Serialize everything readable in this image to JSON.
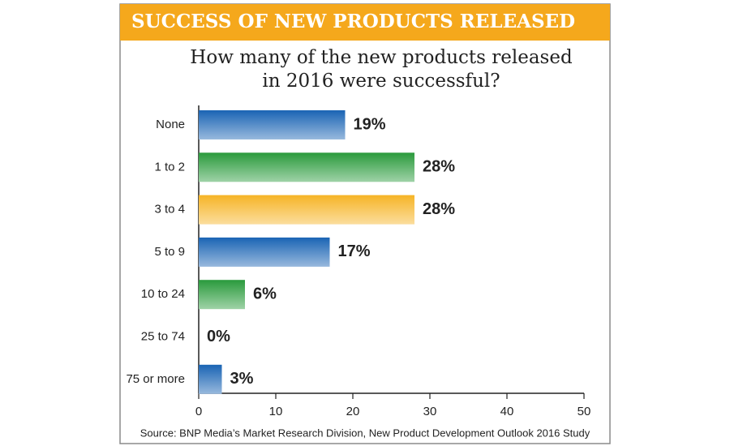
{
  "chart_data": {
    "type": "hbar",
    "title": "SUCCESS OF NEW PRODUCTS RELEASED",
    "subtitle": [
      "How many of the new products released",
      "in 2016 were successful?"
    ],
    "categories": [
      "None",
      "1 to 2",
      "3 to 4",
      "5 to 9",
      "10 to 24",
      "25 to 74",
      "75 or more"
    ],
    "values": [
      19,
      28,
      28,
      17,
      6,
      0,
      3
    ],
    "value_labels": [
      "19%",
      "28%",
      "28%",
      "17%",
      "6%",
      "0%",
      "3%"
    ],
    "colors": [
      "#1a64b4",
      "#2a9a3c",
      "#f6b426",
      "#1a64b4",
      "#2a9a3c",
      "#2a9a3c",
      "#1a64b4"
    ],
    "xlim": [
      0,
      50
    ],
    "xticks": [
      0,
      10,
      20,
      30,
      40,
      50
    ],
    "grid": false,
    "source": "Source: BNP Media’s Market Research Division, New Product Development Outlook 2016 Study"
  }
}
